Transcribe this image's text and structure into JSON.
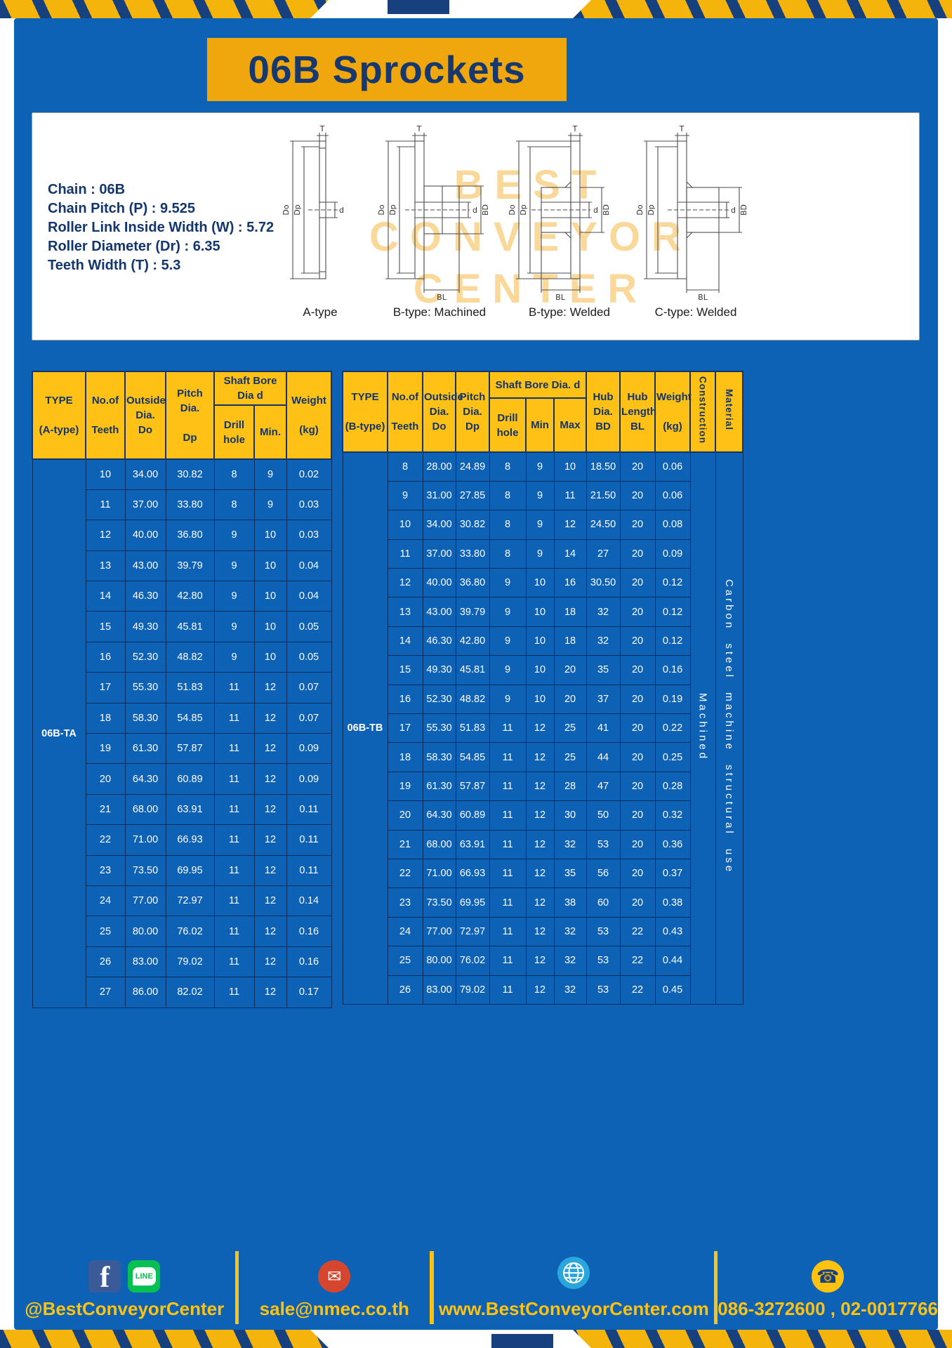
{
  "title": "06B Sprockets",
  "specs": {
    "lines": [
      "Chain : 06B",
      "Chain Pitch (P) : 9.525",
      "Roller Link Inside Width (W) : 5.72",
      "Roller Diameter (Dr) : 6.35",
      "Teeth Width (T) : 5.3"
    ],
    "drawing_labels": [
      "A-type",
      "B-type: Machined",
      "B-type: Welded",
      "C-type: Welded"
    ],
    "watermark": [
      "BEST",
      "CONVEYOR",
      "CENTER"
    ],
    "dims": {
      "T": "T",
      "Do": "Do",
      "Dp": "Dp",
      "d": "d",
      "BD": "BD",
      "BL": "BL"
    }
  },
  "table_a": {
    "headers": {
      "type": "TYPE\n\n(A-type)",
      "teeth": "No.of\n\nTeeth",
      "outside": "Outside\nDia.\nDo",
      "pitch": "Pitch Dia.\n\nDp",
      "bore_group": "Shaft Bore Dia d",
      "drill": "Drill hole",
      "min": "Min.",
      "weight": "Weight\n\n(kg)"
    },
    "type_label": "06B-TA",
    "rows": [
      [
        "10",
        "34.00",
        "30.82",
        "8",
        "9",
        "0.02"
      ],
      [
        "11",
        "37.00",
        "33.80",
        "8",
        "9",
        "0.03"
      ],
      [
        "12",
        "40.00",
        "36.80",
        "9",
        "10",
        "0.03"
      ],
      [
        "13",
        "43.00",
        "39.79",
        "9",
        "10",
        "0.04"
      ],
      [
        "14",
        "46.30",
        "42.80",
        "9",
        "10",
        "0.04"
      ],
      [
        "15",
        "49.30",
        "45.81",
        "9",
        "10",
        "0.05"
      ],
      [
        "16",
        "52.30",
        "48.82",
        "9",
        "10",
        "0.05"
      ],
      [
        "17",
        "55.30",
        "51.83",
        "11",
        "12",
        "0.07"
      ],
      [
        "18",
        "58.30",
        "54.85",
        "11",
        "12",
        "0.07"
      ],
      [
        "19",
        "61.30",
        "57.87",
        "11",
        "12",
        "0.09"
      ],
      [
        "20",
        "64.30",
        "60.89",
        "11",
        "12",
        "0.09"
      ],
      [
        "21",
        "68.00",
        "63.91",
        "11",
        "12",
        "0.11"
      ],
      [
        "22",
        "71.00",
        "66.93",
        "11",
        "12",
        "0.11"
      ],
      [
        "23",
        "73.50",
        "69.95",
        "11",
        "12",
        "0.11"
      ],
      [
        "24",
        "77.00",
        "72.97",
        "11",
        "12",
        "0.14"
      ],
      [
        "25",
        "80.00",
        "76.02",
        "11",
        "12",
        "0.16"
      ],
      [
        "26",
        "83.00",
        "79.02",
        "11",
        "12",
        "0.16"
      ],
      [
        "27",
        "86.00",
        "82.02",
        "11",
        "12",
        "0.17"
      ]
    ]
  },
  "table_b": {
    "headers": {
      "type": "TYPE\n\n(B-type)",
      "teeth": "No.of\n\nTeeth",
      "outside": "Outside\nDia.\nDo",
      "pitch": "Pitch\nDia.\nDp",
      "bore_group": "Shaft Bore Dia.  d",
      "drill": "Drill hole",
      "min": "Min",
      "max": "Max",
      "hub_dia": "Hub\nDia.\nBD",
      "hub_length": "Hub\nLength\nBL",
      "weight": "Weight\n\n(kg)",
      "construction": "Construction",
      "material": "Material"
    },
    "type_label": "06B-TB",
    "construction_value": "Machined",
    "material_value": "Carbon steel machine structural use",
    "rows": [
      [
        "8",
        "28.00",
        "24.89",
        "8",
        "9",
        "10",
        "18.50",
        "20",
        "0.06"
      ],
      [
        "9",
        "31.00",
        "27.85",
        "8",
        "9",
        "11",
        "21.50",
        "20",
        "0.06"
      ],
      [
        "10",
        "34.00",
        "30.82",
        "8",
        "9",
        "12",
        "24.50",
        "20",
        "0.08"
      ],
      [
        "11",
        "37.00",
        "33.80",
        "8",
        "9",
        "14",
        "27",
        "20",
        "0.09"
      ],
      [
        "12",
        "40.00",
        "36.80",
        "9",
        "10",
        "16",
        "30.50",
        "20",
        "0.12"
      ],
      [
        "13",
        "43.00",
        "39.79",
        "9",
        "10",
        "18",
        "32",
        "20",
        "0.12"
      ],
      [
        "14",
        "46.30",
        "42.80",
        "9",
        "10",
        "18",
        "32",
        "20",
        "0.12"
      ],
      [
        "15",
        "49.30",
        "45.81",
        "9",
        "10",
        "20",
        "35",
        "20",
        "0.16"
      ],
      [
        "16",
        "52.30",
        "48.82",
        "9",
        "10",
        "20",
        "37",
        "20",
        "0.19"
      ],
      [
        "17",
        "55.30",
        "51.83",
        "11",
        "12",
        "25",
        "41",
        "20",
        "0.22"
      ],
      [
        "18",
        "58.30",
        "54.85",
        "11",
        "12",
        "25",
        "44",
        "20",
        "0.25"
      ],
      [
        "19",
        "61.30",
        "57.87",
        "11",
        "12",
        "28",
        "47",
        "20",
        "0.28"
      ],
      [
        "20",
        "64.30",
        "60.89",
        "11",
        "12",
        "30",
        "50",
        "20",
        "0.32"
      ],
      [
        "21",
        "68.00",
        "63.91",
        "11",
        "12",
        "32",
        "53",
        "20",
        "0.36"
      ],
      [
        "22",
        "71.00",
        "66.93",
        "11",
        "12",
        "35",
        "56",
        "20",
        "0.37"
      ],
      [
        "23",
        "73.50",
        "69.95",
        "11",
        "12",
        "38",
        "60",
        "20",
        "0.38"
      ],
      [
        "24",
        "77.00",
        "72.97",
        "11",
        "12",
        "32",
        "53",
        "22",
        "0.43"
      ],
      [
        "25",
        "80.00",
        "76.02",
        "11",
        "12",
        "32",
        "53",
        "22",
        "0.44"
      ],
      [
        "26",
        "83.00",
        "79.02",
        "11",
        "12",
        "32",
        "53",
        "22",
        "0.45"
      ]
    ]
  },
  "footer": {
    "social_handle": "@BestConveyorCenter",
    "email": "sale@nmec.co.th",
    "website": "www.BestConveyorCenter.com",
    "phones": "086-3272600 , 02-0017766"
  },
  "icons": {
    "facebook": "f",
    "line": "LINE",
    "mail": "✉",
    "phone": "☎"
  },
  "colors": {
    "page_blue": "#0d62b5",
    "banner_yellow": "#f0a70d",
    "header_yellow": "#ffc115",
    "navy": "#13346a",
    "footer_yellow": "#ffc20e"
  }
}
